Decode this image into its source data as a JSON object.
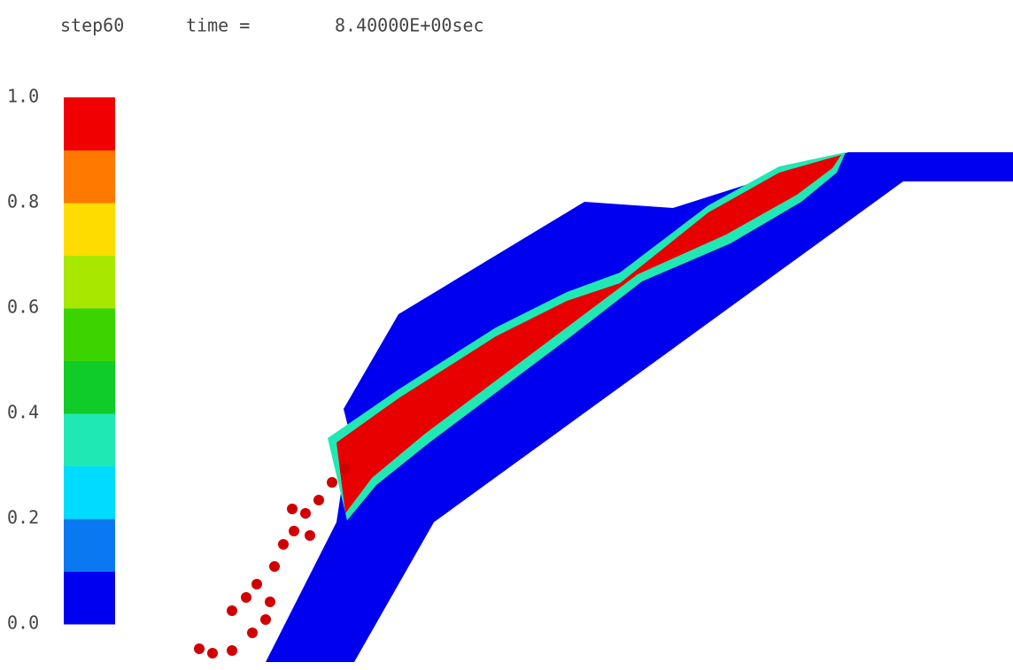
{
  "header": {
    "step": "step60",
    "time_label": "time =",
    "time_value": "8.40000E+00sec"
  },
  "colorbar": {
    "range": [
      0,
      1
    ],
    "ticks": [
      {
        "value": 0,
        "label": "0.0"
      },
      0.2,
      0.4,
      0.6,
      0.8,
      {
        "value": 1,
        "label": "1.0"
      }
    ],
    "colors": [
      "#0000f0",
      "#0a78f0",
      "#00dcff",
      "#20e8b4",
      "#10cc28",
      "#3cd400",
      "#a8e800",
      "#ffdc00",
      "#ff7800",
      "#f00000"
    ]
  }
}
